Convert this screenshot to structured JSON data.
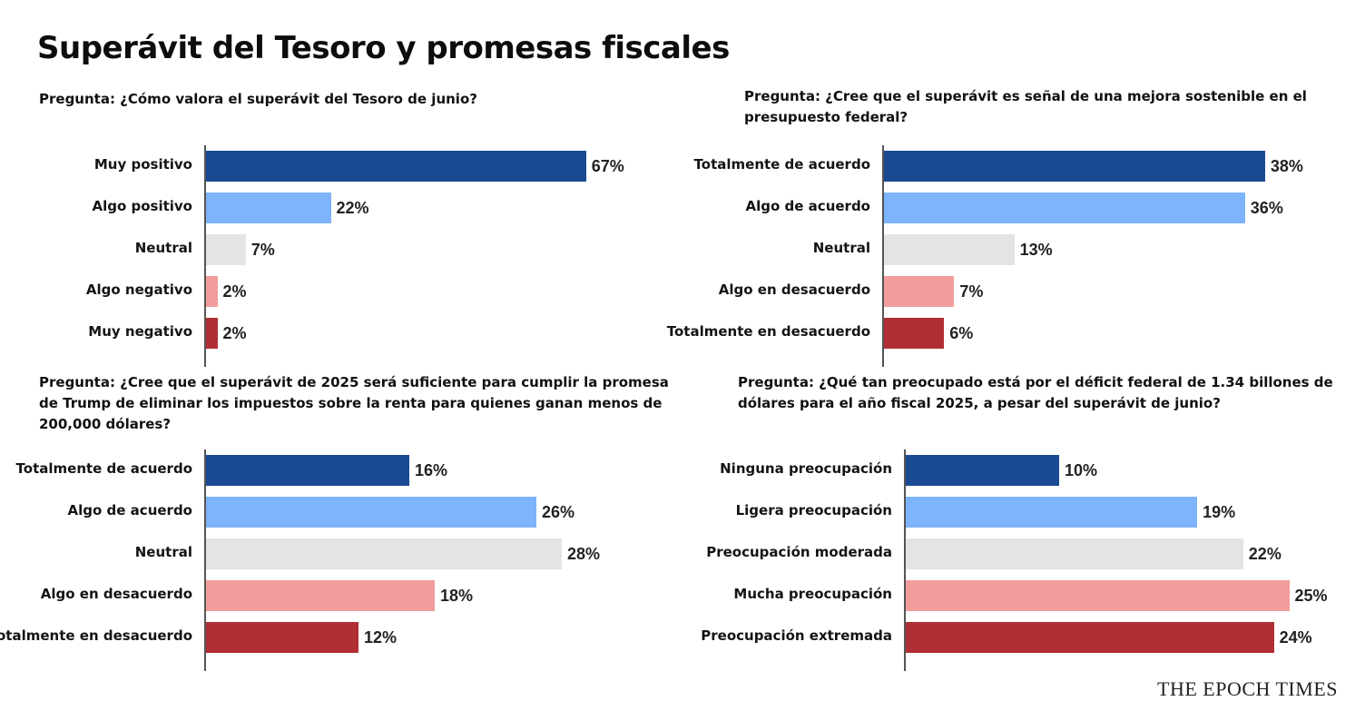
{
  "title": "Superávit del Tesoro y promesas fiscales",
  "brand": "THE EPOCH TIMES",
  "colors": [
    "#1a4a92",
    "#7db4fc",
    "#e4e4e4",
    "#f09d9c",
    "#b02f34"
  ],
  "chart_data": [
    {
      "type": "bar",
      "orientation": "horizontal",
      "question": "Pregunta: ¿Cómo valora el superávit del Tesoro de junio?",
      "categories": [
        "Muy positivo",
        "Algo positivo",
        "Neutral",
        "Algo negativo",
        "Muy negativo"
      ],
      "values": [
        67,
        22,
        7,
        2,
        2
      ],
      "value_labels": [
        "67%",
        "22%",
        "7%",
        "2%",
        "2%"
      ]
    },
    {
      "type": "bar",
      "orientation": "horizontal",
      "question": "Pregunta: ¿Cree que el superávit es señal de una mejora sostenible en el presupuesto federal?",
      "categories": [
        "Totalmente de acuerdo",
        "Algo de acuerdo",
        "Neutral",
        "Algo en desacuerdo",
        "Totalmente en desacuerdo"
      ],
      "values": [
        38,
        36,
        13,
        7,
        6
      ],
      "value_labels": [
        "38%",
        "36%",
        "13%",
        "7%",
        "6%"
      ]
    },
    {
      "type": "bar",
      "orientation": "horizontal",
      "question": "Pregunta: ¿Cree que el superávit de 2025 será suficiente para cumplir la promesa de Trump de eliminar los impuestos sobre la renta para quienes ganan menos de 200,000 dólares?",
      "categories": [
        "Totalmente de acuerdo",
        "Algo de acuerdo",
        "Neutral",
        "Algo en desacuerdo",
        "Totalmente en desacuerdo"
      ],
      "values": [
        16,
        26,
        28,
        18,
        12
      ],
      "value_labels": [
        "16%",
        "26%",
        "28%",
        "18%",
        "12%"
      ]
    },
    {
      "type": "bar",
      "orientation": "horizontal",
      "question": "Pregunta: ¿Qué tan preocupado está por el déficit federal de 1.34 billones de dólares para el año fiscal 2025, a pesar del superávit de junio?",
      "categories": [
        "Ninguna preocupación",
        "Ligera preocupación",
        "Preocupación moderada",
        "Mucha preocupación",
        "Preocupación extremada"
      ],
      "values": [
        10,
        19,
        22,
        25,
        24
      ],
      "value_labels": [
        "10%",
        "19%",
        "22%",
        "25%",
        "24%"
      ]
    }
  ]
}
